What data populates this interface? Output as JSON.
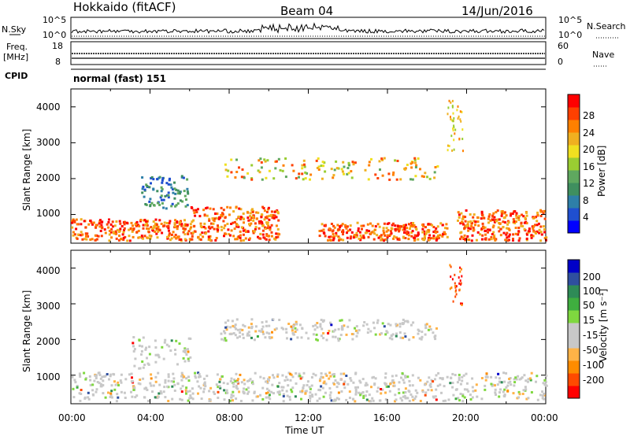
{
  "header": {
    "site": "Hokkaido (fitACF)",
    "beam": "Beam 04",
    "date": "14/Jun/2016"
  },
  "panels": {
    "nsky_label": "N.Sky",
    "nsky_ticks": [
      "10^5",
      "10^0"
    ],
    "nsearch_label": "N.Search",
    "nsearch_ticks": [
      "10^5",
      "10^0"
    ],
    "freq_label": "Freq.",
    "freq_unit": "[MHz]",
    "freq_ticks": [
      "18",
      "8"
    ],
    "nave_label": "Nave",
    "nave_ticks": [
      "60",
      "0"
    ],
    "cpid_label": "CPID",
    "cpid_text": "normal (fast) 151"
  },
  "colors": {
    "power": [
      "#0000ff",
      "#1f4fd0",
      "#2e7fa8",
      "#3f8f5f",
      "#5fa85f",
      "#9acd32",
      "#f0e020",
      "#f0b020",
      "#ff8000",
      "#ff4000",
      "#ff0000"
    ],
    "velocity": [
      "#ff0000",
      "#ff4a00",
      "#ff8c00",
      "#ffb347",
      "#c8c8c8",
      "#c8c8c8",
      "#7fd83f",
      "#3fae3f",
      "#2e8b57",
      "#2f4f9f",
      "#0000c8"
    ]
  },
  "chart_data": [
    {
      "type": "heatmap",
      "name": "power",
      "ylabel": "Slant Range [km]",
      "yticks": [
        "1000",
        "2000",
        "3000",
        "4000"
      ],
      "ylim": [
        200,
        4500
      ],
      "colorbar_label": "Power [dB]",
      "colorbar_ticks": [
        "4",
        "8",
        "12",
        "16",
        "20",
        "24",
        "28"
      ],
      "xticks": [
        "00:00",
        "04:00",
        "08:00",
        "12:00",
        "16:00",
        "20:00",
        "00:00"
      ],
      "xlim_hours": [
        0,
        24
      ],
      "regions": [
        {
          "t": [
            0,
            6
          ],
          "r": [
            300,
            900
          ],
          "level": "high"
        },
        {
          "t": [
            6,
            10.5
          ],
          "r": [
            300,
            1250
          ],
          "level": "high"
        },
        {
          "t": [
            12.5,
            19
          ],
          "r": [
            300,
            800
          ],
          "level": "high"
        },
        {
          "t": [
            19.5,
            24
          ],
          "r": [
            300,
            1150
          ],
          "level": "high"
        },
        {
          "t": [
            7.5,
            18.5
          ],
          "r": [
            2000,
            2600
          ],
          "level": "mid"
        },
        {
          "t": [
            3.5,
            6
          ],
          "r": [
            1200,
            2100
          ],
          "level": "low"
        }
      ]
    },
    {
      "type": "heatmap",
      "name": "velocity",
      "ylabel": "Slant Range [km]",
      "yticks": [
        "1000",
        "2000",
        "3000",
        "4000"
      ],
      "ylim": [
        200,
        4500
      ],
      "colorbar_label": "Velocity [m s⁻¹]",
      "colorbar_ticks": [
        "200",
        "100",
        "50",
        "15",
        "-15",
        "-50",
        "-100",
        "-200"
      ],
      "xticks": [
        "00:00",
        "04:00",
        "08:00",
        "12:00",
        "16:00",
        "20:00",
        "00:00"
      ],
      "xlabel": "Time UT",
      "xlim_hours": [
        0,
        24
      ]
    }
  ]
}
